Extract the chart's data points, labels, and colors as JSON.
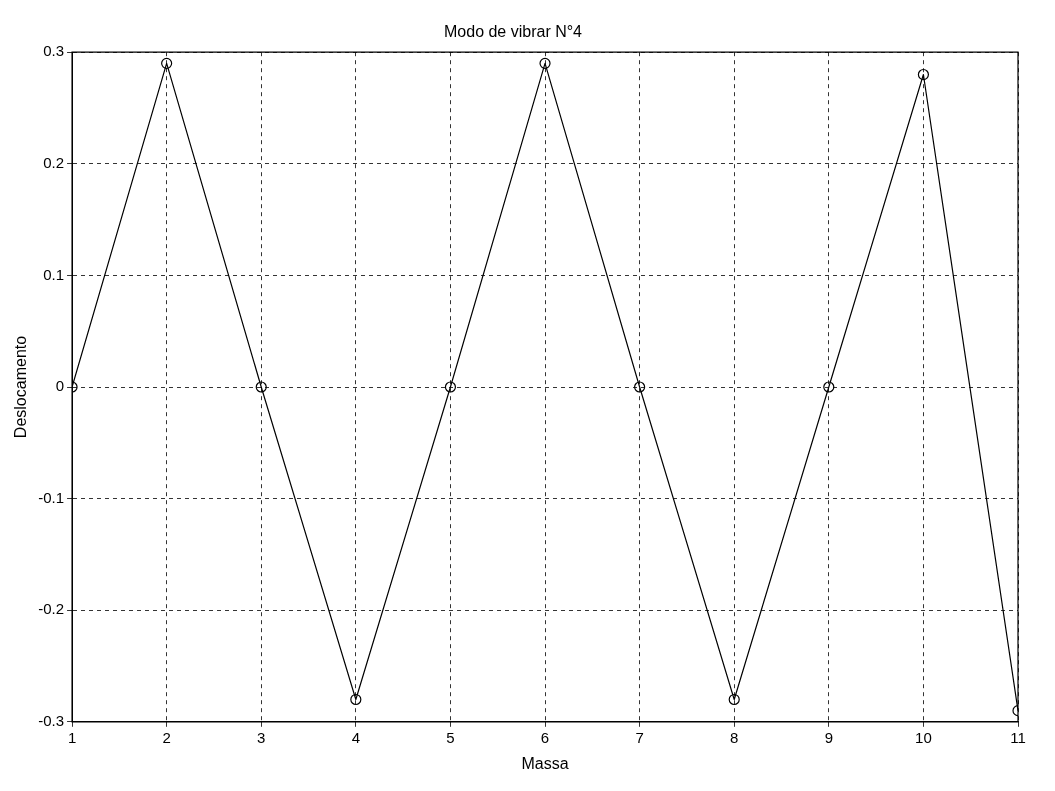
{
  "chart_data": {
    "type": "line",
    "title": "Modo de vibrar N°4",
    "xlabel": "Massa",
    "ylabel": "Deslocamento",
    "x": [
      1,
      2,
      3,
      4,
      5,
      6,
      7,
      8,
      9,
      10,
      11
    ],
    "series": [
      {
        "color": "#000000",
        "values": [
          0,
          0.29,
          0,
          -0.28,
          0,
          0.29,
          0,
          -0.28,
          0,
          0.28,
          -0.29
        ]
      }
    ],
    "xlim": [
      1,
      11
    ],
    "xticks": [
      1,
      2,
      3,
      4,
      5,
      6,
      7,
      8,
      9,
      10,
      11
    ],
    "ylim": [
      -0.3,
      0.3
    ],
    "yticks": [
      -0.3,
      -0.2,
      -0.1,
      0,
      0.1,
      0.2,
      0.3
    ],
    "grid": true,
    "marker": "circle",
    "line_style": "solid",
    "legend": false
  }
}
